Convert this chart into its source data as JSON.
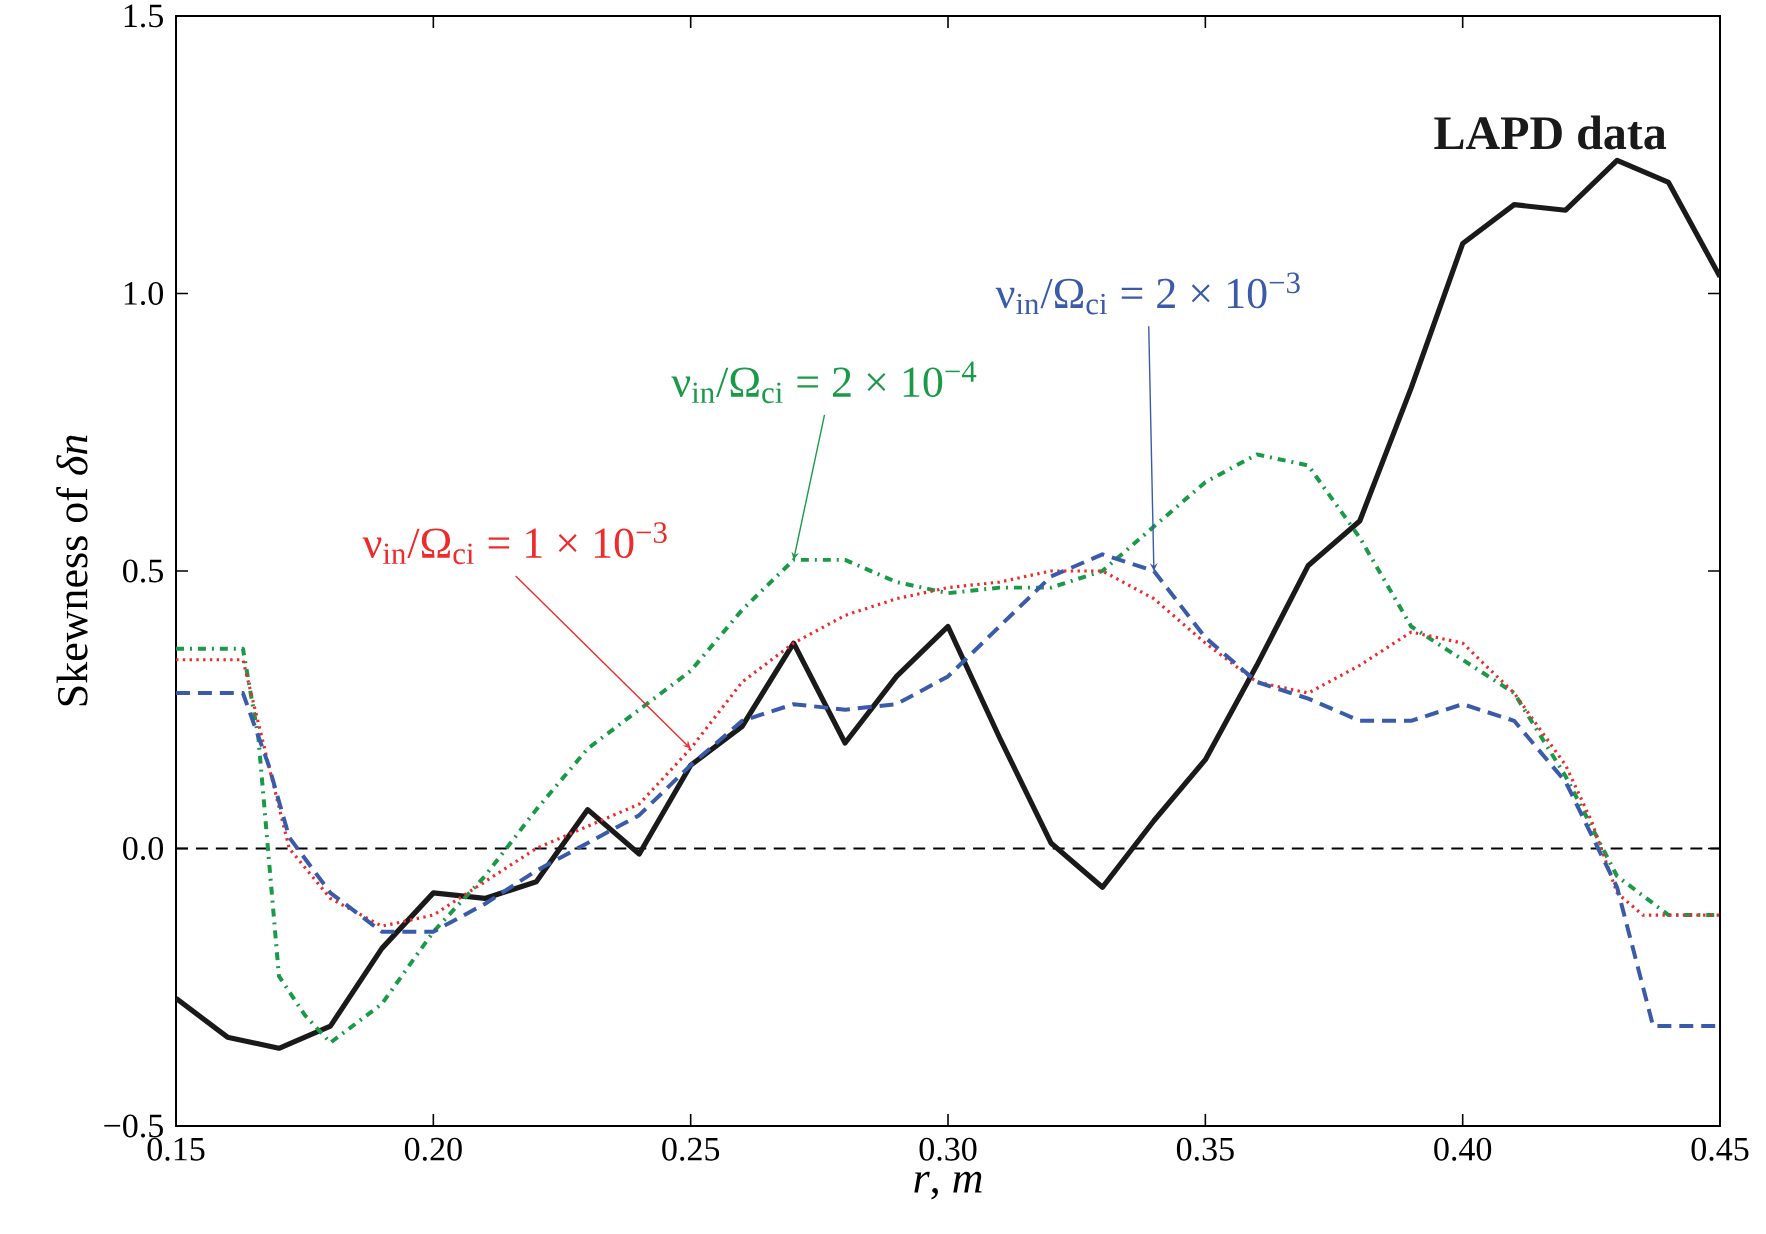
{
  "chart_data": {
    "type": "line",
    "xlabel": "*r*, *m*",
    "ylabel": "Skewness of *δn*",
    "xlim": [
      0.15,
      0.45
    ],
    "ylim": [
      -0.5,
      1.5
    ],
    "xticks": [
      0.15,
      {
        "value": 0.2,
        "label": "0.20"
      },
      0.25,
      {
        "value": 0.3,
        "label": "0.30"
      },
      0.35,
      {
        "value": 0.4,
        "label": "0.40"
      },
      0.45
    ],
    "yticks": [
      {
        "value": -0.5,
        "label": "−0.5"
      },
      {
        "value": 0,
        "label": "0.0"
      },
      0.5,
      {
        "value": 1,
        "label": "1.0"
      },
      1.5
    ],
    "grid": false,
    "marker": "none",
    "ref_lines": [
      {
        "axis": "y",
        "value": 0,
        "color": "#000000",
        "line_style": "dashed"
      }
    ],
    "series": [
      {
        "name": "**LAPD data**",
        "color": "#1a1a1a",
        "line_style": "solid",
        "x": [
          0.15,
          0.16,
          0.17,
          0.18,
          0.19,
          0.2,
          0.21,
          0.22,
          0.23,
          0.24,
          0.25,
          0.26,
          0.27,
          0.28,
          0.29,
          0.3,
          0.31,
          0.32,
          0.33,
          0.34,
          0.35,
          0.36,
          0.37,
          0.38,
          0.39,
          0.4,
          0.41,
          0.42,
          0.43,
          0.44,
          0.45
        ],
        "values": [
          -0.27,
          -0.34,
          -0.36,
          -0.32,
          -0.18,
          -0.08,
          -0.09,
          -0.06,
          0.07,
          -0.01,
          0.15,
          0.22,
          0.37,
          0.19,
          0.31,
          0.4,
          0.2,
          0.01,
          -0.07,
          0.05,
          0.16,
          0.33,
          0.51,
          0.59,
          0.83,
          1.09,
          1.16,
          1.15,
          1.24,
          1.2,
          1.03
        ]
      },
      {
        "name": "ν$_{in}$/Ω$_{ci}$ = 2 × 10$^{−4}$",
        "color": "#1a9a48",
        "line_style": "dashdot",
        "x": [
          0.15,
          0.163,
          0.166,
          0.17,
          0.175,
          0.18,
          0.19,
          0.2,
          0.21,
          0.22,
          0.23,
          0.24,
          0.25,
          0.26,
          0.27,
          0.28,
          0.29,
          0.3,
          0.31,
          0.32,
          0.33,
          0.34,
          0.35,
          0.36,
          0.37,
          0.38,
          0.39,
          0.4,
          0.41,
          0.42,
          0.43,
          0.44,
          0.45
        ],
        "values": [
          0.36,
          0.36,
          0.2,
          -0.23,
          -0.3,
          -0.35,
          -0.28,
          -0.15,
          -0.05,
          0.07,
          0.18,
          0.25,
          0.32,
          0.43,
          0.52,
          0.52,
          0.48,
          0.46,
          0.47,
          0.47,
          0.5,
          0.58,
          0.66,
          0.71,
          0.69,
          0.56,
          0.4,
          0.34,
          0.28,
          0.13,
          -0.05,
          -0.12,
          -0.12
        ]
      },
      {
        "name": "ν$_{in}$/Ω$_{ci}$ = 1 × 10$^{−3}$",
        "color": "#ee2a2a",
        "line_style": "dotted",
        "x": [
          0.15,
          0.163,
          0.168,
          0.172,
          0.18,
          0.19,
          0.2,
          0.21,
          0.22,
          0.23,
          0.24,
          0.25,
          0.26,
          0.27,
          0.28,
          0.29,
          0.3,
          0.31,
          0.32,
          0.33,
          0.34,
          0.35,
          0.36,
          0.37,
          0.38,
          0.39,
          0.4,
          0.41,
          0.42,
          0.425,
          0.43,
          0.435,
          0.45
        ],
        "values": [
          0.34,
          0.34,
          0.15,
          0,
          -0.09,
          -0.14,
          -0.12,
          -0.06,
          0,
          0.04,
          0.08,
          0.18,
          0.3,
          0.37,
          0.42,
          0.45,
          0.47,
          0.48,
          0.5,
          0.5,
          0.45,
          0.37,
          0.3,
          0.28,
          0.33,
          0.39,
          0.37,
          0.28,
          0.15,
          0.05,
          -0.08,
          -0.12,
          -0.12
        ]
      },
      {
        "name": "ν$_{in}$/Ω$_{ci}$ = 2 × 10$^{−3}$",
        "color": "#3a5aaa",
        "line_style": "dashed",
        "x": [
          0.15,
          0.163,
          0.168,
          0.172,
          0.18,
          0.19,
          0.2,
          0.21,
          0.22,
          0.23,
          0.24,
          0.25,
          0.26,
          0.27,
          0.28,
          0.29,
          0.3,
          0.31,
          0.32,
          0.33,
          0.34,
          0.35,
          0.36,
          0.37,
          0.38,
          0.39,
          0.4,
          0.41,
          0.42,
          0.43,
          0.437,
          0.45
        ],
        "values": [
          0.28,
          0.28,
          0.15,
          0.02,
          -0.08,
          -0.15,
          -0.15,
          -0.1,
          -0.04,
          0.01,
          0.06,
          0.15,
          0.23,
          0.26,
          0.25,
          0.26,
          0.31,
          0.4,
          0.49,
          0.53,
          0.5,
          0.38,
          0.3,
          0.27,
          0.23,
          0.23,
          0.26,
          0.23,
          0.12,
          -0.07,
          -0.32,
          -0.32
        ]
      }
    ]
  }
}
